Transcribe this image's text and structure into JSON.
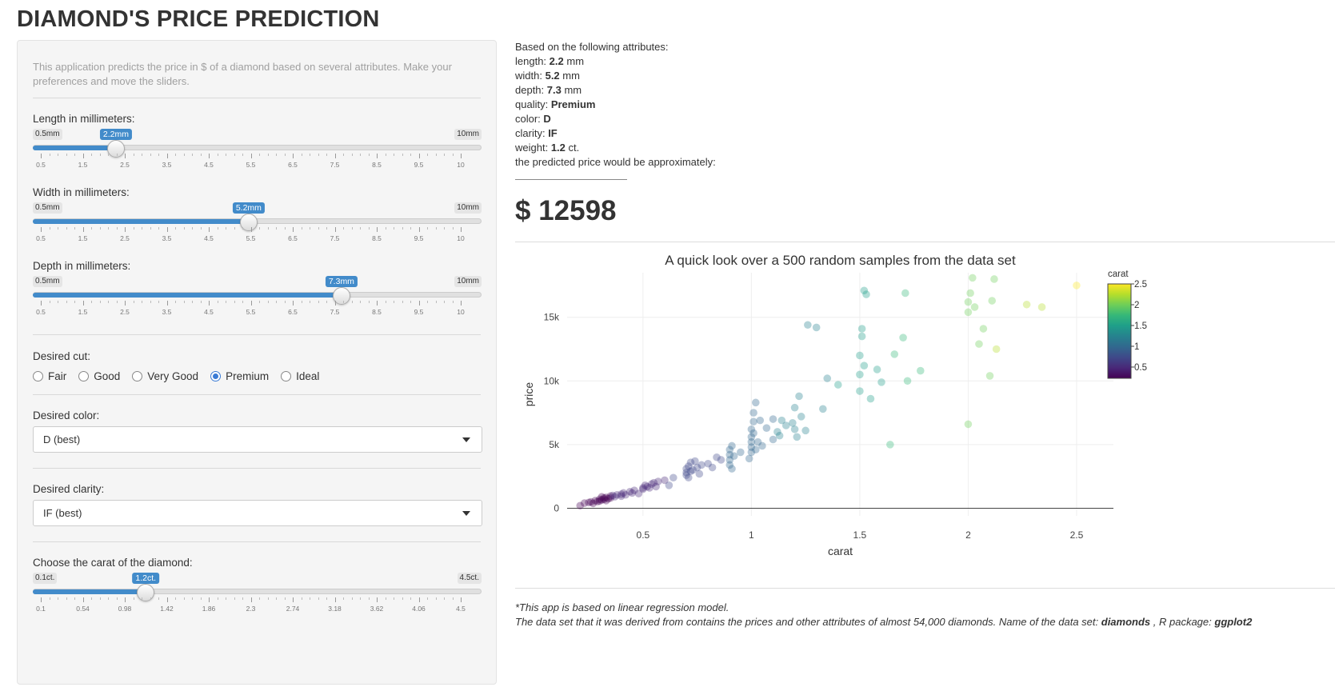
{
  "title": "DIAMOND'S PRICE PREDICTION",
  "sidebar": {
    "description": "This application predicts the price in $ of a diamond based on several attributes. Make your preferences and move the sliders.",
    "length": {
      "label": "Length in millimeters:",
      "min": "0.5mm",
      "max": "10mm",
      "value": "2.2mm",
      "fraction": 0.179,
      "ticks": [
        "0.5",
        "1.5",
        "2.5",
        "3.5",
        "4.5",
        "5.5",
        "6.5",
        "7.5",
        "8.5",
        "9.5",
        "10"
      ]
    },
    "width": {
      "label": "Width in millimeters:",
      "min": "0.5mm",
      "max": "10mm",
      "value": "5.2mm",
      "fraction": 0.495,
      "ticks": [
        "0.5",
        "1.5",
        "2.5",
        "3.5",
        "4.5",
        "5.5",
        "6.5",
        "7.5",
        "8.5",
        "9.5",
        "10"
      ]
    },
    "depth": {
      "label": "Depth in millimeters:",
      "min": "0.5mm",
      "max": "10mm",
      "value": "7.3mm",
      "fraction": 0.716,
      "ticks": [
        "0.5",
        "1.5",
        "2.5",
        "3.5",
        "4.5",
        "5.5",
        "6.5",
        "7.5",
        "8.5",
        "9.5",
        "10"
      ]
    },
    "cut": {
      "label": "Desired cut:",
      "options": [
        "Fair",
        "Good",
        "Very Good",
        "Premium",
        "Ideal"
      ],
      "selected": "Premium"
    },
    "color": {
      "label": "Desired color:",
      "value": "D (best)"
    },
    "clarity": {
      "label": "Desired clarity:",
      "value": "IF (best)"
    },
    "carat": {
      "label": "Choose the carat of the diamond:",
      "min": "0.1ct.",
      "max": "4.5ct.",
      "value": "1.2ct.",
      "fraction": 0.25,
      "ticks": [
        "0.1",
        "0.54",
        "0.98",
        "1.42",
        "1.86",
        "2.3",
        "2.74",
        "3.18",
        "3.62",
        "4.06",
        "4.5"
      ]
    }
  },
  "result": {
    "intro": "Based on the following attributes:",
    "length_label": "length:",
    "length_val": "2.2",
    "length_unit": " mm",
    "width_label": "width:",
    "width_val": "5.2",
    "width_unit": " mm",
    "depth_label": "depth:",
    "depth_val": "7.3",
    "depth_unit": " mm",
    "quality_label": "quality:",
    "quality_val": "Premium",
    "color_label": "color:",
    "color_val": "D",
    "clarity_label": "clarity:",
    "clarity_val": "IF",
    "weight_label": "weight:",
    "weight_val": "1.2",
    "weight_unit": " ct.",
    "outro": "the predicted price would be approximately:",
    "price": "$ 12598"
  },
  "footer": {
    "line1": "*This app is based on linear regression model.",
    "line2a": "The data set that it was derived from contains the prices and other attributes of almost 54,000 diamonds. Name of the data set: ",
    "dataset": "diamonds",
    "line2b": " , R package: ",
    "package": "ggplot2"
  },
  "chart_data": {
    "type": "scatter",
    "title": "A quick look over a 500 random samples from the data set",
    "xlabel": "carat",
    "ylabel": "price",
    "xlim": [
      0.15,
      2.67
    ],
    "ylim": [
      -600,
      18500
    ],
    "xticks": [
      "0.5",
      "1",
      "1.5",
      "2",
      "2.5"
    ],
    "yticks": [
      "0",
      "5k",
      "10k",
      "15k"
    ],
    "colorbar": {
      "title": "carat",
      "ticks": [
        "2.5",
        "2",
        "1.5",
        "1",
        "0.5"
      ],
      "range": [
        0.23,
        2.5
      ]
    },
    "points": [
      [
        0.23,
        400
      ],
      [
        0.25,
        450
      ],
      [
        0.26,
        500
      ],
      [
        0.27,
        380
      ],
      [
        0.28,
        600
      ],
      [
        0.29,
        520
      ],
      [
        0.3,
        700
      ],
      [
        0.3,
        560
      ],
      [
        0.31,
        650
      ],
      [
        0.31,
        900
      ],
      [
        0.32,
        700
      ],
      [
        0.32,
        800
      ],
      [
        0.33,
        850
      ],
      [
        0.33,
        600
      ],
      [
        0.34,
        750
      ],
      [
        0.35,
        800
      ],
      [
        0.35,
        950
      ],
      [
        0.36,
        1000
      ],
      [
        0.37,
        900
      ],
      [
        0.38,
        1050
      ],
      [
        0.4,
        950
      ],
      [
        0.4,
        1100
      ],
      [
        0.41,
        1200
      ],
      [
        0.42,
        1050
      ],
      [
        0.44,
        1300
      ],
      [
        0.45,
        1200
      ],
      [
        0.46,
        1400
      ],
      [
        0.48,
        1150
      ],
      [
        0.5,
        1600
      ],
      [
        0.5,
        1500
      ],
      [
        0.51,
        1800
      ],
      [
        0.52,
        1700
      ],
      [
        0.53,
        1600
      ],
      [
        0.54,
        1900
      ],
      [
        0.55,
        2000
      ],
      [
        0.56,
        1700
      ],
      [
        0.57,
        2100
      ],
      [
        0.6,
        2200
      ],
      [
        0.62,
        1800
      ],
      [
        0.64,
        2400
      ],
      [
        0.7,
        2600
      ],
      [
        0.7,
        2800
      ],
      [
        0.7,
        3100
      ],
      [
        0.71,
        2400
      ],
      [
        0.71,
        3300
      ],
      [
        0.72,
        2900
      ],
      [
        0.72,
        3600
      ],
      [
        0.73,
        3000
      ],
      [
        0.74,
        3700
      ],
      [
        0.75,
        3200
      ],
      [
        0.76,
        2700
      ],
      [
        0.77,
        3400
      ],
      [
        0.8,
        3500
      ],
      [
        0.82,
        3200
      ],
      [
        0.84,
        4000
      ],
      [
        0.86,
        3800
      ],
      [
        0.9,
        3800
      ],
      [
        0.9,
        4200
      ],
      [
        0.9,
        4600
      ],
      [
        0.9,
        3400
      ],
      [
        0.91,
        4900
      ],
      [
        0.91,
        3100
      ],
      [
        0.92,
        4100
      ],
      [
        0.95,
        4400
      ],
      [
        0.99,
        3900
      ],
      [
        1.0,
        4800
      ],
      [
        1.0,
        5200
      ],
      [
        1.0,
        5600
      ],
      [
        1.0,
        6200
      ],
      [
        1.0,
        4400
      ],
      [
        1.01,
        6800
      ],
      [
        1.01,
        7500
      ],
      [
        1.01,
        5900
      ],
      [
        1.02,
        4600
      ],
      [
        1.02,
        8300
      ],
      [
        1.03,
        5200
      ],
      [
        1.04,
        6900
      ],
      [
        1.05,
        4900
      ],
      [
        1.07,
        6300
      ],
      [
        1.1,
        5400
      ],
      [
        1.1,
        7000
      ],
      [
        1.12,
        6000
      ],
      [
        1.13,
        5700
      ],
      [
        1.14,
        6900
      ],
      [
        1.16,
        6500
      ],
      [
        1.19,
        6700
      ],
      [
        1.2,
        7900
      ],
      [
        1.2,
        6200
      ],
      [
        1.21,
        5600
      ],
      [
        1.22,
        8800
      ],
      [
        1.23,
        7200
      ],
      [
        1.25,
        6100
      ],
      [
        1.26,
        14400
      ],
      [
        1.3,
        14200
      ],
      [
        1.33,
        7800
      ],
      [
        1.35,
        10200
      ],
      [
        1.4,
        9700
      ],
      [
        1.5,
        9200
      ],
      [
        1.5,
        10500
      ],
      [
        1.5,
        12000
      ],
      [
        1.51,
        13500
      ],
      [
        1.51,
        14100
      ],
      [
        1.52,
        11200
      ],
      [
        1.52,
        17100
      ],
      [
        1.53,
        16800
      ],
      [
        1.55,
        8600
      ],
      [
        1.58,
        10900
      ],
      [
        1.6,
        9900
      ],
      [
        1.64,
        5000
      ],
      [
        1.66,
        12100
      ],
      [
        1.7,
        13400
      ],
      [
        1.71,
        16900
      ],
      [
        1.72,
        10000
      ],
      [
        1.78,
        10800
      ],
      [
        2.0,
        15400
      ],
      [
        2.0,
        16200
      ],
      [
        2.01,
        16900
      ],
      [
        2.02,
        18100
      ],
      [
        2.03,
        15800
      ],
      [
        2.05,
        12900
      ],
      [
        2.07,
        14100
      ],
      [
        2.1,
        10400
      ],
      [
        2.11,
        16300
      ],
      [
        2.12,
        18000
      ],
      [
        2.13,
        12500
      ],
      [
        2.27,
        16000
      ],
      [
        2.34,
        15800
      ],
      [
        2.5,
        17500
      ],
      [
        2.0,
        6600
      ],
      [
        0.21,
        200
      ]
    ]
  }
}
